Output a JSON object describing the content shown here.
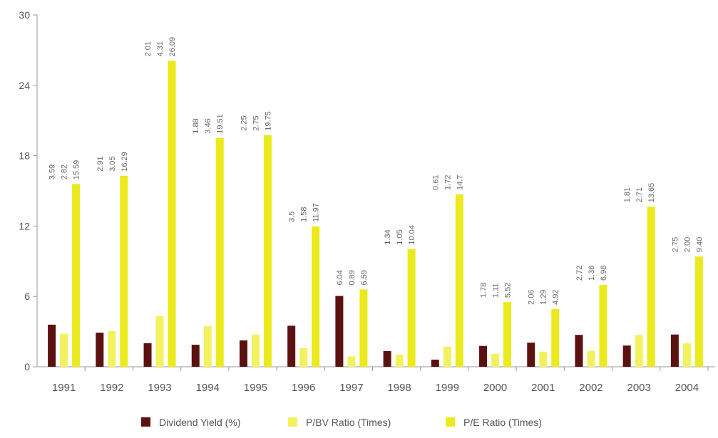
{
  "chart_data": {
    "type": "bar",
    "categories": [
      "1991",
      "1992",
      "1993",
      "1994",
      "1995",
      "1996",
      "1997",
      "1998",
      "1999",
      "2000",
      "2001",
      "2002",
      "2003",
      "2004"
    ],
    "series": [
      {
        "name": "Dividend Yield (%)",
        "color": "#5c1111",
        "values": [
          3.59,
          2.91,
          2.01,
          1.88,
          2.25,
          3.5,
          6.04,
          1.34,
          0.61,
          1.78,
          2.06,
          2.72,
          1.81,
          2.75
        ],
        "labels": [
          "3.59",
          "2.91",
          "2.01",
          "1.88",
          "2.25",
          "3.5",
          "6.04",
          "1.34",
          "0.61",
          "1.78",
          "2.06",
          "2.72",
          "1.81",
          "2.75"
        ]
      },
      {
        "name": "P/BV Ratio (Times)",
        "color": "#f2f25e",
        "values": [
          2.82,
          3.05,
          4.31,
          3.46,
          2.75,
          1.58,
          0.89,
          1.05,
          1.72,
          1.11,
          1.29,
          1.36,
          2.71,
          2.0
        ],
        "labels": [
          "2.82",
          "3.05",
          "4.31",
          "3.46",
          "2.75",
          "1.58",
          "0.89",
          "1.05",
          "1.72",
          "1.11",
          "1.29",
          "1.36",
          "2.71",
          "2.00"
        ]
      },
      {
        "name": "P/E Ratio (Times)",
        "color": "#eaea1c",
        "values": [
          15.59,
          16.29,
          26.09,
          19.51,
          19.75,
          11.97,
          6.59,
          10.04,
          14.7,
          5.52,
          4.92,
          6.98,
          13.65,
          9.4
        ],
        "labels": [
          "15.59",
          "16.29",
          "26.09",
          "19.51",
          "19.75",
          "11.97",
          "6.59",
          "10.04",
          "14.7",
          "5.52",
          "4.92",
          "6.98",
          "13.65",
          "9.40"
        ]
      }
    ],
    "yticks": [
      "0",
      "6",
      "12",
      "18",
      "24",
      "30"
    ],
    "ylim": [
      0,
      30
    ],
    "grid": false,
    "legend": "bottom-center",
    "title": "",
    "xlabel": "",
    "ylabel": ""
  }
}
